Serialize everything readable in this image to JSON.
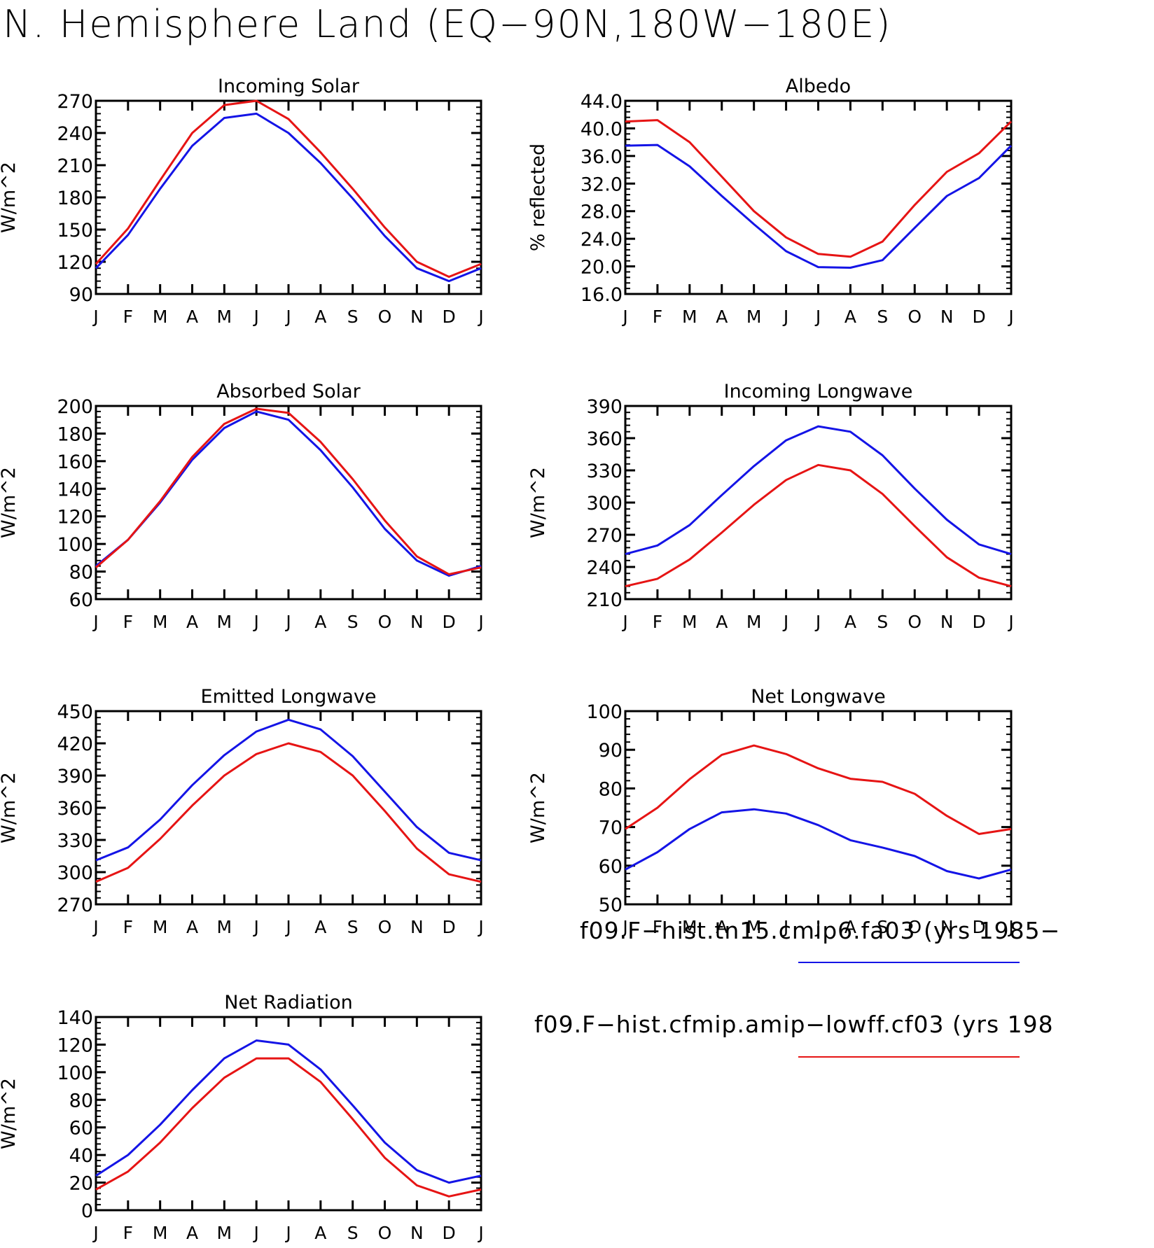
{
  "title": "N. Hemisphere Land (EQ−90N,180W−180E)",
  "colors": {
    "series_1": "#1414e6",
    "series_2": "#e61414",
    "axis": "#000000"
  },
  "legend": {
    "entries": [
      {
        "label": "f09.F−hist.tn15.cmip6.fa03 (yrs 1985−",
        "color": "#1414e6"
      },
      {
        "label": "f09.F−hist.cfmip.amip−lowff.cf03 (yrs 198",
        "color": "#e61414"
      }
    ]
  },
  "chart_data": [
    {
      "type": "line",
      "title": "Incoming Solar",
      "ylabel": "W/m^2",
      "ylim": [
        90,
        270
      ],
      "yticks": [
        "90",
        "120",
        "150",
        "180",
        "210",
        "240",
        "270"
      ],
      "categories": [
        "J",
        "F",
        "M",
        "A",
        "M",
        "J",
        "J",
        "A",
        "S",
        "O",
        "N",
        "D",
        "J"
      ],
      "series": [
        {
          "color": "#1414e6",
          "values": [
            114,
            145,
            188,
            228,
            254,
            258,
            240,
            212,
            179,
            144,
            114,
            102,
            114
          ]
        },
        {
          "color": "#e61414",
          "values": [
            118,
            151,
            196,
            240,
            266,
            270,
            253,
            222,
            188,
            152,
            120,
            106,
            118
          ]
        }
      ]
    },
    {
      "type": "line",
      "title": "Albedo",
      "ylabel": "% reflected",
      "ylim": [
        16,
        44
      ],
      "yticks": [
        "16.0",
        "20.0",
        "24.0",
        "28.0",
        "32.0",
        "36.0",
        "40.0",
        "44.0"
      ],
      "categories": [
        "J",
        "F",
        "M",
        "A",
        "M",
        "J",
        "J",
        "A",
        "S",
        "O",
        "N",
        "D",
        "J"
      ],
      "series": [
        {
          "color": "#1414e6",
          "values": [
            37.5,
            37.6,
            34.5,
            30.2,
            26.1,
            22.2,
            19.9,
            19.8,
            20.9,
            25.6,
            30.2,
            32.8,
            37.5
          ]
        },
        {
          "color": "#e61414",
          "values": [
            41.0,
            41.2,
            38.0,
            33.0,
            28.0,
            24.2,
            21.8,
            21.4,
            23.6,
            28.9,
            33.7,
            36.4,
            41.0
          ]
        }
      ]
    },
    {
      "type": "line",
      "title": "Absorbed Solar",
      "ylabel": "W/m^2",
      "ylim": [
        60,
        200
      ],
      "yticks": [
        "60",
        "80",
        "100",
        "120",
        "140",
        "160",
        "180",
        "200"
      ],
      "categories": [
        "J",
        "F",
        "M",
        "A",
        "M",
        "J",
        "J",
        "A",
        "S",
        "O",
        "N",
        "D",
        "J"
      ],
      "series": [
        {
          "color": "#1414e6",
          "values": [
            84,
            103,
            130,
            161,
            184,
            196,
            190,
            168,
            141,
            111,
            88,
            77,
            84
          ]
        },
        {
          "color": "#e61414",
          "values": [
            83,
            103,
            131,
            163,
            187,
            198,
            195,
            174,
            147,
            117,
            91,
            78,
            83
          ]
        }
      ]
    },
    {
      "type": "line",
      "title": "Incoming Longwave",
      "ylabel": "W/m^2",
      "ylim": [
        210,
        390
      ],
      "yticks": [
        "210",
        "240",
        "270",
        "300",
        "330",
        "360",
        "390"
      ],
      "categories": [
        "J",
        "F",
        "M",
        "A",
        "M",
        "J",
        "J",
        "A",
        "S",
        "O",
        "N",
        "D",
        "J"
      ],
      "series": [
        {
          "color": "#1414e6",
          "values": [
            252,
            260,
            279,
            307,
            334,
            358,
            371,
            366,
            344,
            313,
            284,
            261,
            252
          ]
        },
        {
          "color": "#e61414",
          "values": [
            222,
            229,
            247,
            272,
            298,
            321,
            335,
            330,
            308,
            278,
            249,
            230,
            222
          ]
        }
      ]
    },
    {
      "type": "line",
      "title": "Emitted Longwave",
      "ylabel": "W/m^2",
      "ylim": [
        270,
        450
      ],
      "yticks": [
        "270",
        "300",
        "330",
        "360",
        "390",
        "420",
        "450"
      ],
      "categories": [
        "J",
        "F",
        "M",
        "A",
        "M",
        "J",
        "J",
        "A",
        "S",
        "O",
        "N",
        "D",
        "J"
      ],
      "series": [
        {
          "color": "#1414e6",
          "values": [
            311,
            323,
            349,
            381,
            409,
            431,
            442,
            433,
            408,
            375,
            342,
            318,
            311
          ]
        },
        {
          "color": "#e61414",
          "values": [
            291,
            304,
            331,
            362,
            390,
            410,
            420,
            412,
            390,
            357,
            322,
            298,
            291
          ]
        }
      ]
    },
    {
      "type": "line",
      "title": "Net Longwave",
      "ylabel": "W/m^2",
      "ylim": [
        50,
        100
      ],
      "yticks": [
        "50",
        "60",
        "70",
        "80",
        "90",
        "100"
      ],
      "categories": [
        "J",
        "F",
        "M",
        "A",
        "M",
        "J",
        "J",
        "A",
        "S",
        "O",
        "N",
        "D",
        "J"
      ],
      "series": [
        {
          "color": "#1414e6",
          "values": [
            59,
            63.5,
            69.5,
            73.8,
            74.6,
            73.5,
            70.5,
            66.6,
            64.7,
            62.5,
            58.6,
            56.7,
            59
          ]
        },
        {
          "color": "#e61414",
          "values": [
            69.5,
            75,
            82.4,
            88.7,
            91.1,
            88.9,
            85.2,
            82.5,
            81.7,
            78.6,
            72.9,
            68.2,
            69.5
          ]
        }
      ]
    },
    {
      "type": "line",
      "title": "Net Radiation",
      "ylabel": "W/m^2",
      "ylim": [
        0,
        140
      ],
      "yticks": [
        "0",
        "20",
        "40",
        "60",
        "80",
        "100",
        "120",
        "140"
      ],
      "categories": [
        "J",
        "F",
        "M",
        "A",
        "M",
        "J",
        "J",
        "A",
        "S",
        "O",
        "N",
        "D",
        "J"
      ],
      "series": [
        {
          "color": "#1414e6",
          "values": [
            25,
            40,
            62,
            87,
            110,
            123,
            120,
            102,
            76,
            49,
            29,
            20,
            25
          ]
        },
        {
          "color": "#e61414",
          "values": [
            15,
            28,
            49,
            74,
            96,
            110,
            110,
            93,
            66,
            38,
            18,
            10,
            15
          ]
        }
      ]
    }
  ]
}
